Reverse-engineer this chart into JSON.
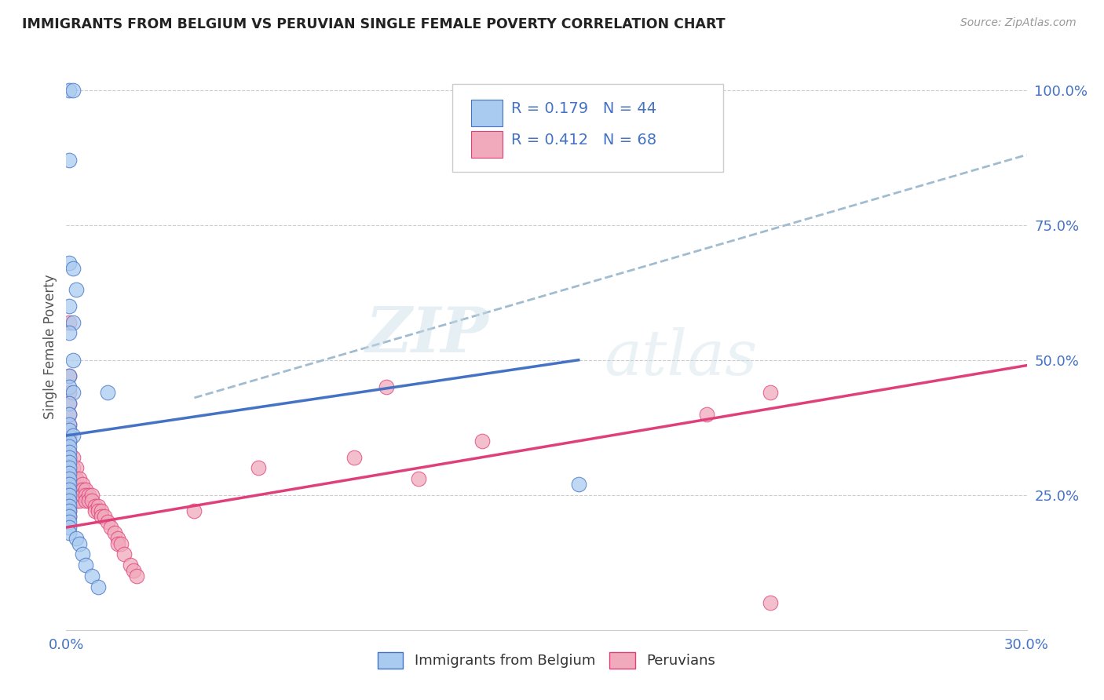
{
  "title": "IMMIGRANTS FROM BELGIUM VS PERUVIAN SINGLE FEMALE POVERTY CORRELATION CHART",
  "source": "Source: ZipAtlas.com",
  "ylabel": "Single Female Poverty",
  "legend_label_1": "Immigrants from Belgium",
  "legend_label_2": "Peruvians",
  "R1": "0.179",
  "N1": "44",
  "R2": "0.412",
  "N2": "68",
  "xlim": [
    0.0,
    0.3
  ],
  "ylim": [
    0.0,
    1.05
  ],
  "xticks": [
    0.0,
    0.05,
    0.1,
    0.15,
    0.2,
    0.25,
    0.3
  ],
  "xticklabels": [
    "0.0%",
    "",
    "",
    "",
    "",
    "",
    "30.0%"
  ],
  "yticks": [
    0.0,
    0.25,
    0.5,
    0.75,
    1.0
  ],
  "yticklabels": [
    "",
    "25.0%",
    "50.0%",
    "75.0%",
    "100.0%"
  ],
  "color_belgium": "#aacbf0",
  "color_peru": "#f0aabb",
  "color_belgium_line": "#4472c4",
  "color_peru_line": "#e0407a",
  "color_dashed_line": "#a0bcd0",
  "background_color": "#ffffff",
  "watermark_zip": "ZIP",
  "watermark_atlas": "atlas",
  "belgium_x": [
    0.001,
    0.002,
    0.001,
    0.001,
    0.002,
    0.003,
    0.001,
    0.002,
    0.001,
    0.002,
    0.001,
    0.001,
    0.002,
    0.001,
    0.001,
    0.001,
    0.001,
    0.002,
    0.001,
    0.001,
    0.001,
    0.001,
    0.001,
    0.001,
    0.001,
    0.001,
    0.001,
    0.001,
    0.001,
    0.001,
    0.001,
    0.001,
    0.001,
    0.001,
    0.001,
    0.001,
    0.003,
    0.004,
    0.005,
    0.006,
    0.008,
    0.01,
    0.013,
    0.16
  ],
  "belgium_y": [
    1.0,
    1.0,
    0.87,
    0.68,
    0.67,
    0.63,
    0.6,
    0.57,
    0.55,
    0.5,
    0.47,
    0.45,
    0.44,
    0.42,
    0.4,
    0.38,
    0.37,
    0.36,
    0.35,
    0.34,
    0.33,
    0.32,
    0.31,
    0.3,
    0.29,
    0.28,
    0.27,
    0.26,
    0.25,
    0.24,
    0.23,
    0.22,
    0.21,
    0.2,
    0.19,
    0.18,
    0.17,
    0.16,
    0.14,
    0.12,
    0.1,
    0.08,
    0.44,
    0.27
  ],
  "peru_x": [
    0.001,
    0.001,
    0.001,
    0.001,
    0.001,
    0.001,
    0.001,
    0.001,
    0.001,
    0.001,
    0.001,
    0.001,
    0.001,
    0.001,
    0.001,
    0.001,
    0.001,
    0.001,
    0.001,
    0.001,
    0.002,
    0.002,
    0.002,
    0.002,
    0.002,
    0.003,
    0.003,
    0.003,
    0.003,
    0.004,
    0.004,
    0.004,
    0.005,
    0.005,
    0.005,
    0.006,
    0.006,
    0.006,
    0.007,
    0.007,
    0.008,
    0.008,
    0.009,
    0.009,
    0.01,
    0.01,
    0.011,
    0.011,
    0.012,
    0.013,
    0.014,
    0.015,
    0.016,
    0.016,
    0.017,
    0.018,
    0.02,
    0.021,
    0.022,
    0.04,
    0.06,
    0.09,
    0.1,
    0.11,
    0.13,
    0.2,
    0.22,
    0.22
  ],
  "peru_y": [
    0.57,
    0.47,
    0.44,
    0.42,
    0.4,
    0.38,
    0.36,
    0.35,
    0.33,
    0.32,
    0.3,
    0.29,
    0.28,
    0.27,
    0.26,
    0.25,
    0.24,
    0.23,
    0.22,
    0.21,
    0.32,
    0.3,
    0.28,
    0.26,
    0.25,
    0.3,
    0.28,
    0.26,
    0.24,
    0.28,
    0.26,
    0.24,
    0.27,
    0.26,
    0.25,
    0.26,
    0.25,
    0.24,
    0.25,
    0.24,
    0.25,
    0.24,
    0.23,
    0.22,
    0.23,
    0.22,
    0.22,
    0.21,
    0.21,
    0.2,
    0.19,
    0.18,
    0.17,
    0.16,
    0.16,
    0.14,
    0.12,
    0.11,
    0.1,
    0.22,
    0.3,
    0.32,
    0.45,
    0.28,
    0.35,
    0.4,
    0.44,
    0.05
  ],
  "blue_line_x0": 0.0,
  "blue_line_y0": 0.36,
  "blue_line_x1": 0.16,
  "blue_line_y1": 0.5,
  "pink_line_x0": 0.0,
  "pink_line_y0": 0.19,
  "pink_line_x1": 0.3,
  "pink_line_y1": 0.49,
  "dashed_line_x0": 0.04,
  "dashed_line_y0": 0.43,
  "dashed_line_x1": 0.3,
  "dashed_line_y1": 0.88
}
